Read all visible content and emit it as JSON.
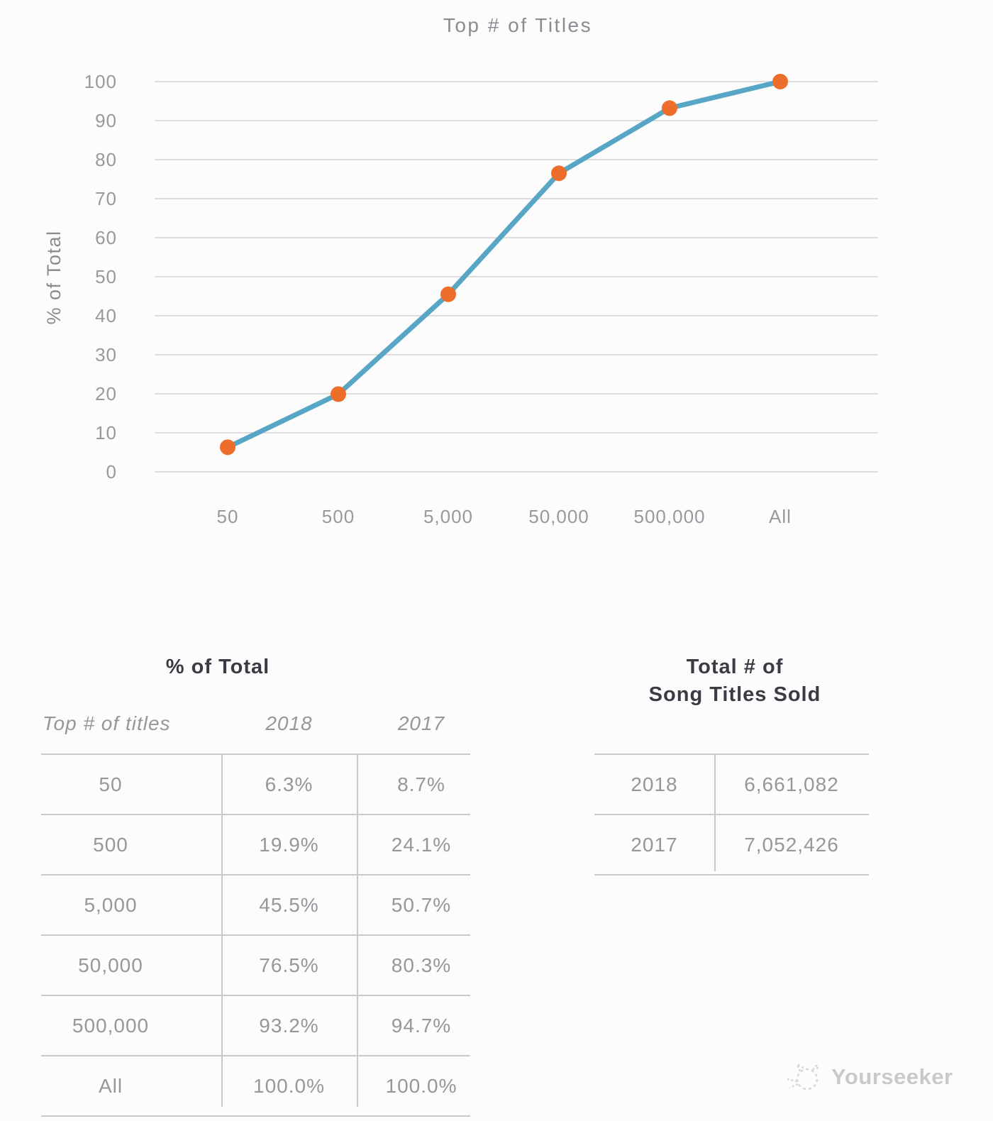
{
  "chart_data": {
    "type": "line",
    "title": "Top # of Titles",
    "ylabel": "% of Total",
    "categories": [
      "50",
      "500",
      "5,000",
      "50,000",
      "500,000",
      "All"
    ],
    "series": [
      {
        "name": "2018",
        "values": [
          6.3,
          19.9,
          45.5,
          76.5,
          93.2,
          100.0
        ]
      }
    ],
    "ylim": [
      0,
      100
    ],
    "ytick_step": 10,
    "grid": true,
    "legend": "none",
    "line_color": "#58a6c6",
    "marker_color": "#ed6e2b"
  },
  "percent_table": {
    "title": "% of Total",
    "columns": [
      "Top # of titles",
      "2018",
      "2017"
    ],
    "rows": [
      [
        "50",
        "6.3%",
        "8.7%"
      ],
      [
        "500",
        "19.9%",
        "24.1%"
      ],
      [
        "5,000",
        "45.5%",
        "50.7%"
      ],
      [
        "50,000",
        "76.5%",
        "80.3%"
      ],
      [
        "500,000",
        "93.2%",
        "94.7%"
      ],
      [
        "All",
        "100.0%",
        "100.0%"
      ]
    ]
  },
  "totals_table": {
    "title_line1": "Total # of",
    "title_line2": "Song Titles Sold",
    "rows": [
      [
        "2018",
        "6,661,082"
      ],
      [
        "2017",
        "7,052,426"
      ]
    ]
  },
  "footer": {
    "brand": "Yourseeker"
  }
}
